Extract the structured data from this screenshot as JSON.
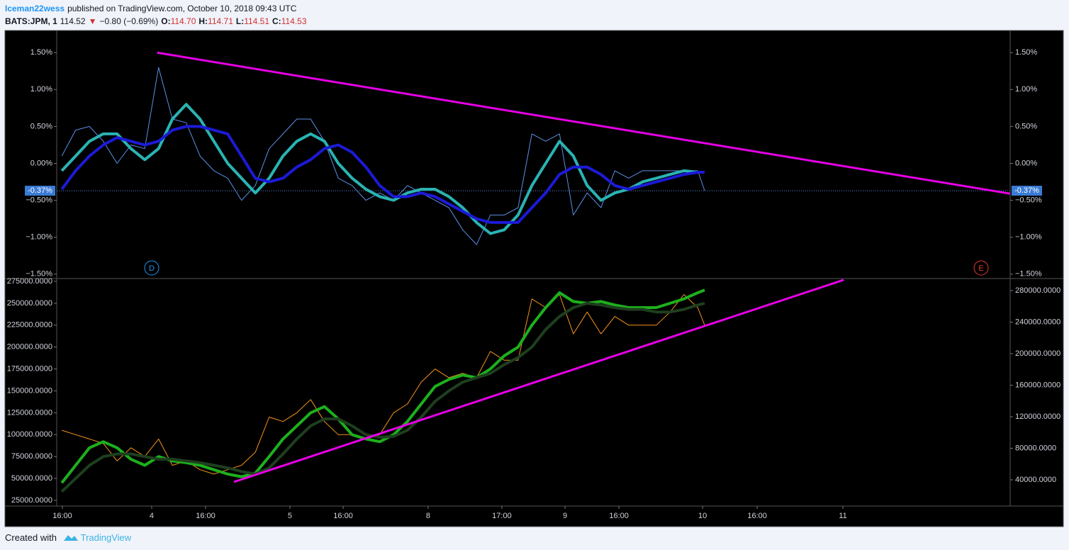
{
  "header": {
    "author": "Iceman22wess",
    "published": "published on TradingView.com, October 10, 2018 09:43 UTC",
    "symbol": "BATS:JPM, 1",
    "price": "114.52",
    "arrow": "▼",
    "change": "−0.80 (−0.69%)",
    "ohlc": [
      {
        "label": "O:",
        "value": "114.70"
      },
      {
        "label": "H:",
        "value": "114.71"
      },
      {
        "label": "L:",
        "value": "114.51"
      },
      {
        "label": "C:",
        "value": "114.53"
      }
    ]
  },
  "chart_data": [
    {
      "type": "line",
      "x": [
        0.35,
        0.45,
        0.55,
        0.65,
        0.75,
        0.85,
        0.95,
        1.05,
        1.15,
        1.25,
        1.35,
        1.45,
        1.55,
        1.65,
        1.75,
        1.85,
        1.95,
        2.05,
        2.15,
        2.25,
        2.35,
        2.45,
        2.55,
        2.65,
        2.75,
        2.85,
        2.95,
        3.05,
        3.15,
        3.25,
        3.35,
        3.45,
        3.55,
        3.65,
        3.75,
        3.85,
        3.95,
        4.05,
        4.15,
        4.25,
        4.35,
        4.45,
        4.55,
        4.65,
        4.75,
        4.85,
        4.95,
        5.0
      ],
      "series": [
        {
          "color": "#5b8fe8",
          "values": [
            0.1,
            0.45,
            0.5,
            0.3,
            0.0,
            0.25,
            0.2,
            1.3,
            0.6,
            0.55,
            0.1,
            -0.1,
            -0.2,
            -0.5,
            -0.3,
            0.2,
            0.4,
            0.6,
            0.6,
            0.3,
            -0.2,
            -0.3,
            -0.5,
            -0.4,
            -0.5,
            -0.3,
            -0.4,
            -0.5,
            -0.6,
            -0.9,
            -1.1,
            -0.7,
            -0.7,
            -0.6,
            0.4,
            0.3,
            0.4,
            -0.7,
            -0.4,
            -0.6,
            -0.1,
            -0.2,
            -0.1,
            -0.1,
            -0.1,
            -0.1,
            -0.1,
            -0.37
          ]
        },
        {
          "color": "#2ab3b3",
          "values": [
            -0.1,
            0.1,
            0.3,
            0.4,
            0.4,
            0.2,
            0.05,
            0.2,
            0.6,
            0.8,
            0.6,
            0.3,
            0.0,
            -0.2,
            -0.4,
            -0.2,
            0.1,
            0.3,
            0.4,
            0.3,
            0.0,
            -0.2,
            -0.35,
            -0.45,
            -0.5,
            -0.4,
            -0.35,
            -0.35,
            -0.45,
            -0.6,
            -0.8,
            -0.95,
            -0.9,
            -0.7,
            -0.3,
            0.0,
            0.3,
            0.1,
            -0.3,
            -0.5,
            -0.4,
            -0.35,
            -0.25,
            -0.2,
            -0.15,
            -0.1,
            -0.12,
            -0.12
          ]
        },
        {
          "color": "#1c1ad6",
          "values": [
            -0.35,
            -0.1,
            0.1,
            0.25,
            0.35,
            0.3,
            0.25,
            0.3,
            0.45,
            0.5,
            0.5,
            0.45,
            0.4,
            0.1,
            -0.2,
            -0.25,
            -0.2,
            -0.05,
            0.05,
            0.2,
            0.25,
            0.15,
            -0.05,
            -0.3,
            -0.45,
            -0.45,
            -0.4,
            -0.45,
            -0.55,
            -0.65,
            -0.75,
            -0.8,
            -0.8,
            -0.8,
            -0.6,
            -0.4,
            -0.15,
            -0.05,
            -0.05,
            -0.15,
            -0.3,
            -0.35,
            -0.3,
            -0.25,
            -0.2,
            -0.15,
            -0.12,
            -0.12
          ]
        }
      ],
      "xlim": [
        0.313,
        7.21
      ],
      "ylim": [
        -1.55,
        1.8
      ],
      "yticks": [
        {
          "value": 1.5,
          "label": "1.50%"
        },
        {
          "value": 1.0,
          "label": "1.00%"
        },
        {
          "value": 0.5,
          "label": "0.50%"
        },
        {
          "value": 0.0,
          "label": "0.00%"
        },
        {
          "value": -0.5,
          "label": "−0.50%"
        },
        {
          "value": -1.0,
          "label": "−1.00%"
        },
        {
          "value": -1.5,
          "label": "−1.50%"
        }
      ],
      "last_value": {
        "value": -0.37,
        "label": "-0.37%"
      },
      "trend_line": {
        "x": [
          1.04,
          7.21
        ],
        "y": [
          1.5,
          -0.41
        ],
        "color": "#e600e6"
      },
      "events": [
        {
          "label": "D",
          "x": 1.0,
          "color": "#2196f3"
        },
        {
          "label": "E",
          "x": 7.0,
          "color": "#e53935"
        }
      ]
    },
    {
      "type": "line",
      "x": [
        0.35,
        0.45,
        0.55,
        0.65,
        0.75,
        0.85,
        0.95,
        1.05,
        1.15,
        1.25,
        1.35,
        1.45,
        1.55,
        1.65,
        1.75,
        1.85,
        1.95,
        2.05,
        2.15,
        2.25,
        2.35,
        2.45,
        2.55,
        2.65,
        2.75,
        2.85,
        2.95,
        3.05,
        3.15,
        3.25,
        3.35,
        3.45,
        3.55,
        3.65,
        3.75,
        3.85,
        3.95,
        4.05,
        4.15,
        4.25,
        4.35,
        4.45,
        4.55,
        4.65,
        4.75,
        4.85,
        4.95,
        5.0
      ],
      "series": [
        {
          "color": "#f7931e",
          "values": [
            105000,
            100000,
            95000,
            90000,
            70000,
            85000,
            75000,
            95000,
            65000,
            70000,
            60000,
            55000,
            60000,
            65000,
            80000,
            120000,
            115000,
            125000,
            140000,
            115000,
            100000,
            100000,
            95000,
            100000,
            125000,
            135000,
            160000,
            175000,
            165000,
            170000,
            165000,
            195000,
            185000,
            185000,
            255000,
            245000,
            260000,
            215000,
            240000,
            215000,
            235000,
            225000,
            225000,
            225000,
            240000,
            260000,
            245000,
            225000
          ]
        },
        {
          "color": "#1db01d",
          "values": [
            45000,
            65000,
            85000,
            92000,
            85000,
            72000,
            65000,
            75000,
            70000,
            68000,
            65000,
            60000,
            55000,
            52000,
            56000,
            75000,
            95000,
            110000,
            125000,
            132000,
            118000,
            100000,
            95000,
            92000,
            100000,
            115000,
            135000,
            155000,
            163000,
            168000,
            165000,
            175000,
            190000,
            200000,
            225000,
            245000,
            262000,
            252000,
            250000,
            252000,
            248000,
            245000,
            245000,
            245000,
            250000,
            255000,
            262000,
            265000
          ]
        },
        {
          "color": "#1e3f1e",
          "values": [
            35000,
            50000,
            65000,
            75000,
            78000,
            78000,
            75000,
            72000,
            72000,
            70000,
            68000,
            65000,
            62000,
            58000,
            55000,
            62000,
            78000,
            95000,
            110000,
            118000,
            118000,
            110000,
            100000,
            97000,
            98000,
            105000,
            120000,
            138000,
            150000,
            160000,
            165000,
            170000,
            180000,
            188000,
            200000,
            220000,
            235000,
            245000,
            250000,
            248000,
            245000,
            243000,
            243000,
            240000,
            240000,
            243000,
            248000,
            250000
          ]
        }
      ],
      "xlim": [
        0.313,
        7.21
      ],
      "ylim": [
        18500,
        278200
      ],
      "yticks": [
        {
          "value": 275000,
          "label": "275000.0000"
        },
        {
          "value": 250000,
          "label": "250000.0000"
        },
        {
          "value": 225000,
          "label": "225000.0000"
        },
        {
          "value": 200000,
          "label": "200000.0000"
        },
        {
          "value": 175000,
          "label": "175000.0000"
        },
        {
          "value": 150000,
          "label": "150000.0000"
        },
        {
          "value": 125000,
          "label": "125000.0000"
        },
        {
          "value": 100000,
          "label": "100000.0000"
        },
        {
          "value": 75000,
          "label": "75000.0000"
        },
        {
          "value": 50000,
          "label": "50000.0000"
        },
        {
          "value": 25000,
          "label": "25000.0000"
        }
      ],
      "y2lim": [
        6700,
        295300
      ],
      "y2ticks": [
        {
          "value": 280000,
          "label": "280000.0000"
        },
        {
          "value": 240000,
          "label": "240000.0000"
        },
        {
          "value": 200000,
          "label": "200000.0000"
        },
        {
          "value": 160000,
          "label": "160000.0000"
        },
        {
          "value": 120000,
          "label": "120000.0000"
        },
        {
          "value": 80000,
          "label": "80000.0000"
        },
        {
          "value": 40000,
          "label": "40000.0000"
        }
      ],
      "xticks": [
        {
          "value": 0.354,
          "label": "16:00"
        },
        {
          "value": 1.0,
          "label": "4"
        },
        {
          "value": 1.39,
          "label": "16:00"
        },
        {
          "value": 2.0,
          "label": "5"
        },
        {
          "value": 2.385,
          "label": "16:00"
        },
        {
          "value": 3.0,
          "label": "8"
        },
        {
          "value": 3.533,
          "label": "17:00"
        },
        {
          "value": 3.99,
          "label": "9"
        },
        {
          "value": 4.38,
          "label": "16:00"
        },
        {
          "value": 4.985,
          "label": "10"
        },
        {
          "value": 5.38,
          "label": "16:00"
        },
        {
          "value": 6.0,
          "label": "11"
        }
      ],
      "trend_line": {
        "x": [
          1.595,
          6.005
        ],
        "y": [
          46000,
          276600
        ],
        "color": "#e600e6"
      }
    }
  ],
  "footer": {
    "created": "Created with",
    "brand": "TradingView"
  }
}
